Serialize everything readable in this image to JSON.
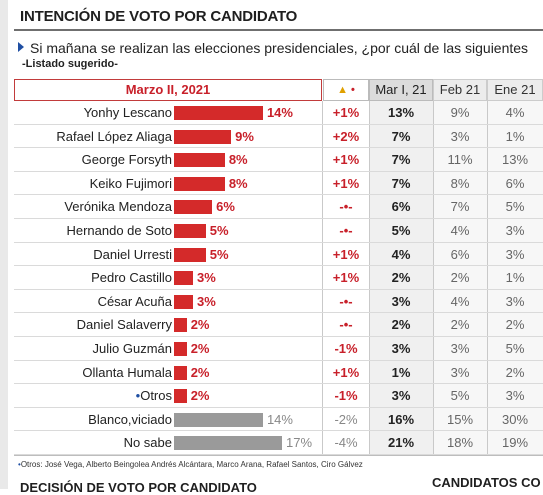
{
  "header": {
    "title": "INTENCIÓN DE VOTO POR CANDIDATO",
    "question": "Si mañana se realizan las elecciones presidenciales, ¿por cuál de las siguientes",
    "subquestion": "-Listado sugerido-"
  },
  "columns": {
    "current": "Marzo II, 2021",
    "delta_icons": "▲",
    "delta_dot": "•",
    "mar": "Mar I, 21",
    "feb": "Feb 21",
    "ene": "Ene 21"
  },
  "colors": {
    "bar_red": "#d42a2a",
    "bar_gray": "#9a9a9a",
    "accent_red": "#c8202a"
  },
  "chart_data": {
    "type": "bar",
    "title": "INTENCIÓN DE VOTO POR CANDIDATO",
    "orientation": "horizontal",
    "categories": [
      "Yonhy Lescano",
      "Rafael López Aliaga",
      "George Forsyth",
      "Keiko Fujimori",
      "Verónika Mendoza",
      "Hernando de Soto",
      "Daniel Urresti",
      "Pedro Castillo",
      "César Acuña",
      "Daniel Salaverry",
      "Julio Guzmán",
      "Ollanta Humala",
      "Otros",
      "Blanco,viciado",
      "No sabe"
    ],
    "series": [
      {
        "name": "Marzo II, 2021",
        "values": [
          14,
          9,
          8,
          8,
          6,
          5,
          5,
          3,
          3,
          2,
          2,
          2,
          2,
          14,
          17
        ]
      }
    ],
    "xlim": [
      0,
      17
    ],
    "rows": [
      {
        "name": "Yonhy Lescano",
        "pct": "14%",
        "value": 14,
        "delta": "+1%",
        "mar": "13%",
        "feb": "9%",
        "ene": "4%"
      },
      {
        "name": "Rafael López Aliaga",
        "pct": "9%",
        "value": 9,
        "delta": "+2%",
        "mar": "7%",
        "feb": "3%",
        "ene": "1%"
      },
      {
        "name": "George Forsyth",
        "pct": "8%",
        "value": 8,
        "delta": "+1%",
        "mar": "7%",
        "feb": "11%",
        "ene": "13%"
      },
      {
        "name": "Keiko Fujimori",
        "pct": "8%",
        "value": 8,
        "delta": "+1%",
        "mar": "7%",
        "feb": "8%",
        "ene": "6%"
      },
      {
        "name": "Verónika Mendoza",
        "pct": "6%",
        "value": 6,
        "delta": "-•-",
        "mar": "6%",
        "feb": "7%",
        "ene": "5%"
      },
      {
        "name": "Hernando de Soto",
        "pct": "5%",
        "value": 5,
        "delta": "-•-",
        "mar": "5%",
        "feb": "4%",
        "ene": "3%"
      },
      {
        "name": "Daniel Urresti",
        "pct": "5%",
        "value": 5,
        "delta": "+1%",
        "mar": "4%",
        "feb": "6%",
        "ene": "3%"
      },
      {
        "name": "Pedro Castillo",
        "pct": "3%",
        "value": 3,
        "delta": "+1%",
        "mar": "2%",
        "feb": "2%",
        "ene": "1%"
      },
      {
        "name": "César Acuña",
        "pct": "3%",
        "value": 3,
        "delta": "-•-",
        "mar": "3%",
        "feb": "4%",
        "ene": "3%"
      },
      {
        "name": "Daniel Salaverry",
        "pct": "2%",
        "value": 2,
        "delta": "-•-",
        "mar": "2%",
        "feb": "2%",
        "ene": "2%"
      },
      {
        "name": "Julio Guzmán",
        "pct": "2%",
        "value": 2,
        "delta": "-1%",
        "mar": "3%",
        "feb": "3%",
        "ene": "5%"
      },
      {
        "name": "Ollanta Humala",
        "pct": "2%",
        "value": 2,
        "delta": "+1%",
        "mar": "1%",
        "feb": "3%",
        "ene": "2%"
      },
      {
        "name": "Otros",
        "pct": "2%",
        "value": 2,
        "delta": "-1%",
        "mar": "3%",
        "feb": "5%",
        "ene": "3%",
        "starred": true
      },
      {
        "name": "Blanco,viciado",
        "pct": "14%",
        "value": 14,
        "delta": "-2%",
        "mar": "16%",
        "feb": "15%",
        "ene": "30%",
        "gray": true
      },
      {
        "name": "No sabe",
        "pct": "17%",
        "value": 17,
        "delta": "-4%",
        "mar": "21%",
        "feb": "18%",
        "ene": "19%",
        "gray": true
      }
    ]
  },
  "footnote": {
    "star": "•",
    "text": "Otros: José Vega, Alberto Beingolea Andrés Alcántara, Marco Arana, Rafael Santos, Ciro Gálvez"
  },
  "bottom": {
    "left": "DECISIÓN DE VOTO POR CANDIDATO",
    "right": "CANDIDATOS CO"
  }
}
